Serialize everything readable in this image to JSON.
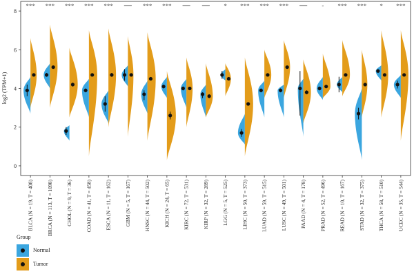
{
  "chart_data": {
    "type": "violin",
    "ylabel": "log2 (TPM+1)",
    "ylim": [
      -0.5,
      8.5
    ],
    "yticks": [
      0,
      2,
      4,
      6,
      8
    ],
    "legend": {
      "title": "Group",
      "position": "bottom-left",
      "entries": [
        {
          "name": "Normal",
          "color": "#3ba6df"
        },
        {
          "name": "Tumor",
          "color": "#e39c1a"
        }
      ]
    },
    "categories": [
      "BLCA (N = 19, T = 408)",
      "BRCA (N = 113, T = 1098)",
      "CHOL (N = 9, T = 36)",
      "COAD (N = 41, T = 458)",
      "ESCA (N = 11, T = 162)",
      "GBM (N = 5, T = 167)",
      "HNSC (N = 44, T = 502)",
      "KICH (N = 24, T = 65)",
      "KIRC (N = 72, T = 531)",
      "KIRP (N = 32, T = 289)",
      "LGG (N = 5, T = 525)",
      "LIHC (N = 50, T = 373)",
      "LUAD (N = 59, T = 515)",
      "LUSC (N = 49, T = 501)",
      "PAAD (N = 4, T = 178)",
      "PRAD (N = 52, T = 496)",
      "READ (N = 10, T = 167)",
      "STAD (N = 32, T = 375)",
      "THCA (N = 58, T = 510)",
      "UCEC (N = 35, T = 544)"
    ],
    "significance": [
      "***",
      "***",
      "***",
      "***",
      "***",
      "—",
      "***",
      "***",
      "—",
      "—",
      "*",
      "***",
      "***",
      "***",
      "—",
      "-",
      "***",
      "***",
      "*",
      "***"
    ],
    "series": [
      {
        "name": "Normal",
        "medians": [
          3.9,
          4.7,
          1.8,
          3.9,
          3.2,
          4.7,
          3.7,
          4.1,
          4.0,
          3.7,
          4.7,
          1.7,
          3.9,
          3.9,
          4.0,
          4.0,
          4.2,
          2.7,
          4.9,
          4.2
        ],
        "ranges": [
          [
            2.7,
            4.6
          ],
          [
            4.0,
            5.3
          ],
          [
            1.3,
            2.1
          ],
          [
            2.5,
            4.5
          ],
          [
            2.2,
            3.9
          ],
          [
            4.1,
            5.2
          ],
          [
            2.7,
            4.4
          ],
          [
            3.5,
            4.6
          ],
          [
            3.0,
            4.5
          ],
          [
            2.5,
            4.2
          ],
          [
            4.4,
            5.0
          ],
          [
            1.1,
            2.7
          ],
          [
            2.5,
            4.4
          ],
          [
            2.5,
            4.2
          ],
          [
            1.5,
            4.5
          ],
          [
            3.4,
            4.6
          ],
          [
            3.8,
            4.6
          ],
          [
            0.3,
            4.0
          ],
          [
            4.4,
            5.2
          ],
          [
            3.5,
            4.7
          ]
        ],
        "ci": [
          [
            3.6,
            4.2
          ],
          [
            4.6,
            4.8
          ],
          [
            1.6,
            2.0
          ],
          [
            3.8,
            4.0
          ],
          [
            2.8,
            3.6
          ],
          [
            4.4,
            5.0
          ],
          [
            3.4,
            3.9
          ],
          [
            4.0,
            4.2
          ],
          [
            3.9,
            4.1
          ],
          [
            3.5,
            3.8
          ],
          [
            4.5,
            4.9
          ],
          [
            1.5,
            1.9
          ],
          [
            3.8,
            4.0
          ],
          [
            3.8,
            4.0
          ],
          [
            4.9,
            4.9
          ],
          [
            3.9,
            4.1
          ],
          [
            3.8,
            4.6
          ],
          [
            2.4,
            3.0
          ],
          [
            4.8,
            5.0
          ],
          [
            4.0,
            4.4
          ]
        ],
        "ci_full": [
          null,
          null,
          null,
          null,
          null,
          null,
          null,
          null,
          null,
          null,
          null,
          null,
          null,
          null,
          [
            2.6,
            4.9
          ],
          null,
          null,
          null,
          null,
          null
        ],
        "widths": [
          10,
          9,
          8,
          10,
          10,
          9,
          9,
          8,
          8,
          8,
          7,
          10,
          9,
          9,
          8,
          9,
          8,
          10,
          8,
          10
        ]
      },
      {
        "name": "Tumor",
        "medians": [
          4.7,
          5.1,
          4.2,
          4.7,
          4.7,
          4.7,
          4.5,
          2.6,
          4.0,
          3.6,
          4.5,
          3.2,
          4.7,
          5.1,
          3.8,
          4.1,
          4.7,
          4.2,
          4.7,
          4.7
        ],
        "ranges": [
          [
            3.0,
            6.6
          ],
          [
            3.0,
            7.3
          ],
          [
            2.5,
            6.1
          ],
          [
            0.5,
            7.0
          ],
          [
            2.0,
            7.1
          ],
          [
            1.5,
            6.7
          ],
          [
            1.3,
            6.9
          ],
          [
            0.3,
            4.9
          ],
          [
            2.0,
            5.6
          ],
          [
            2.5,
            5.3
          ],
          [
            3.6,
            5.3
          ],
          [
            0.5,
            5.6
          ],
          [
            3.5,
            6.0
          ],
          [
            3.5,
            6.5
          ],
          [
            2.2,
            5.5
          ],
          [
            3.5,
            5.8
          ],
          [
            3.6,
            6.5
          ],
          [
            2.5,
            6.0
          ],
          [
            2.5,
            7.0
          ],
          [
            1.3,
            7.0
          ]
        ],
        "ci": [
          [
            4.7,
            4.7
          ],
          [
            5.1,
            5.1
          ],
          [
            4.1,
            4.3
          ],
          [
            4.7,
            4.7
          ],
          [
            4.6,
            4.8
          ],
          [
            4.7,
            4.7
          ],
          [
            4.5,
            4.5
          ],
          [
            2.4,
            2.8
          ],
          [
            4.0,
            4.0
          ],
          [
            3.5,
            3.7
          ],
          [
            4.5,
            4.5
          ],
          [
            3.2,
            3.2
          ],
          [
            4.7,
            4.7
          ],
          [
            5.1,
            5.1
          ],
          [
            3.7,
            3.9
          ],
          [
            4.1,
            4.1
          ],
          [
            4.7,
            4.7
          ],
          [
            4.2,
            4.2
          ],
          [
            4.7,
            4.7
          ],
          [
            4.7,
            4.7
          ]
        ],
        "widths": [
          9,
          11,
          12,
          12,
          11,
          8,
          12,
          13,
          9,
          10,
          8,
          12,
          10,
          9,
          11,
          11,
          11,
          8,
          10,
          11
        ]
      }
    ]
  }
}
